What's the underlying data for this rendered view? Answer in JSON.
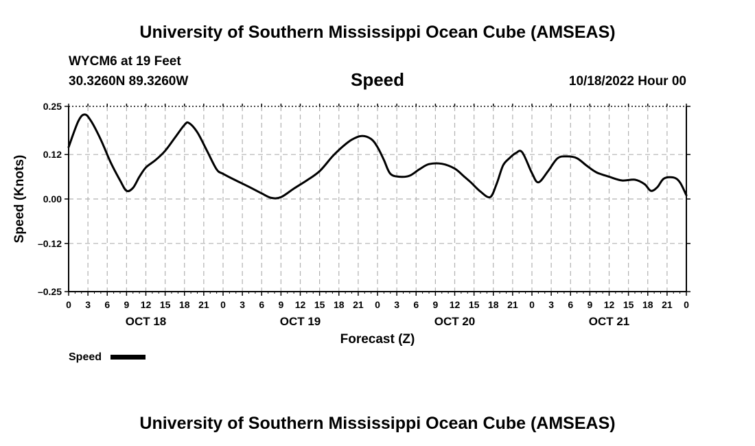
{
  "header": {
    "title_top": "University of Southern Mississippi Ocean Cube (AMSEAS)",
    "station": "WYCM6 at 19 Feet",
    "location": "30.3260N  89.3260W",
    "variable": "Speed",
    "run": "10/18/2022 Hour 00",
    "title_bottom": "University of Southern Mississippi Ocean Cube (AMSEAS)"
  },
  "legend": {
    "label": "Speed",
    "color": "#000000"
  },
  "chart_data": {
    "type": "line",
    "title": "Speed",
    "xlabel": "Forecast (Z)",
    "ylabel": "Speed (Knots)",
    "xlim": [
      0,
      96
    ],
    "ylim": [
      -0.25,
      0.25
    ],
    "yticks": [
      0.25,
      0.12,
      0.0,
      -0.12,
      -0.25
    ],
    "ytick_labels": [
      "0.25",
      "0.12",
      "0.00",
      "–0.12",
      "–0.25"
    ],
    "xtick_labels": [
      "0",
      "3",
      "6",
      "9",
      "12",
      "15",
      "18",
      "21",
      "0",
      "3",
      "6",
      "9",
      "12",
      "15",
      "18",
      "21",
      "0",
      "3",
      "6",
      "9",
      "12",
      "15",
      "18",
      "21",
      "0",
      "3",
      "6",
      "9",
      "12",
      "15",
      "18",
      "21",
      "0"
    ],
    "day_labels": [
      {
        "label": "OCT 18",
        "hour": 12
      },
      {
        "label": "OCT 19",
        "hour": 36
      },
      {
        "label": "OCT 20",
        "hour": 60
      },
      {
        "label": "OCT 21",
        "hour": 84
      }
    ],
    "grid": true,
    "series": [
      {
        "name": "Speed",
        "color": "#000000",
        "x": [
          0,
          1.5,
          2.5,
          3.5,
          5,
          6.5,
          8,
          9,
          10,
          11,
          12,
          13.5,
          15,
          16.5,
          18,
          18.7,
          20,
          21.5,
          23,
          24,
          26,
          28,
          30,
          31.5,
          33,
          35,
          37,
          39,
          41,
          42.5,
          44,
          45.5,
          47,
          48,
          49,
          50,
          51.5,
          53,
          54.5,
          56,
          58,
          60,
          61.5,
          62.5,
          64,
          65.5,
          66.5,
          67.5,
          68.5,
          69.5,
          70.5,
          72,
          73,
          74.5,
          76,
          77.5,
          79,
          80.5,
          82,
          84,
          86,
          88,
          89.5,
          90.5,
          91.5,
          92.5,
          94,
          95,
          96
        ],
        "y": [
          0.14,
          0.21,
          0.228,
          0.21,
          0.16,
          0.1,
          0.05,
          0.022,
          0.03,
          0.06,
          0.085,
          0.105,
          0.13,
          0.165,
          0.2,
          0.205,
          0.18,
          0.13,
          0.08,
          0.068,
          0.05,
          0.033,
          0.015,
          0.003,
          0.005,
          0.028,
          0.05,
          0.075,
          0.115,
          0.14,
          0.16,
          0.17,
          0.162,
          0.14,
          0.105,
          0.068,
          0.06,
          0.063,
          0.08,
          0.094,
          0.095,
          0.082,
          0.06,
          0.045,
          0.02,
          0.005,
          0.04,
          0.09,
          0.11,
          0.124,
          0.126,
          0.07,
          0.045,
          0.075,
          0.11,
          0.115,
          0.11,
          0.09,
          0.072,
          0.06,
          0.05,
          0.052,
          0.04,
          0.022,
          0.032,
          0.055,
          0.058,
          0.045,
          0.01
        ]
      }
    ]
  }
}
